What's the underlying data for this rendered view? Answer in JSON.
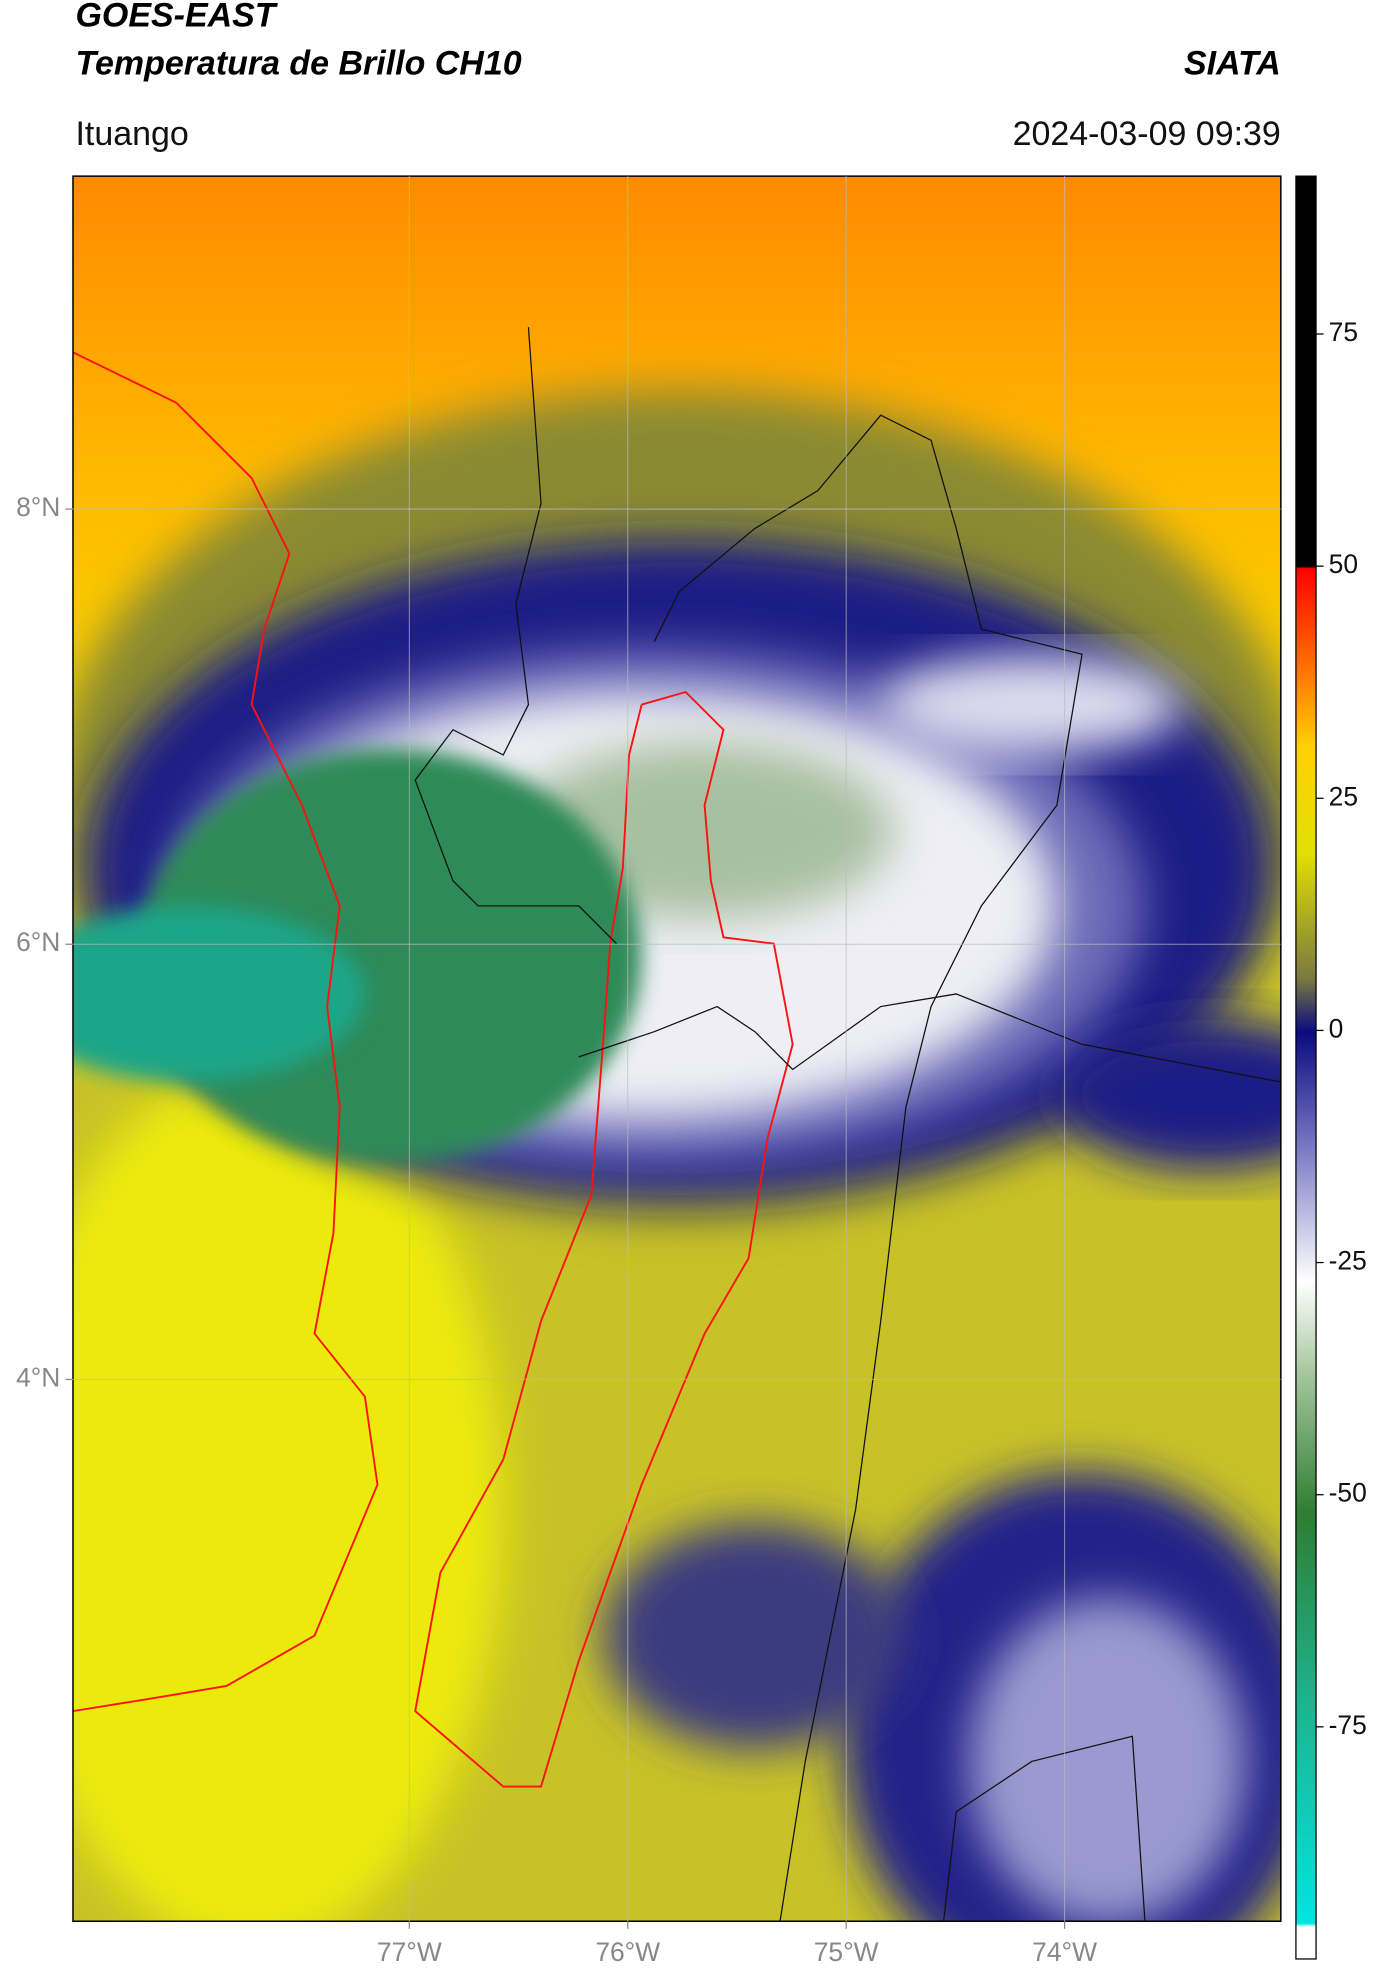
{
  "header": {
    "title": "GOES-EAST",
    "subtitle": "Temperatura de Brillo CH10",
    "org": "SIATA",
    "location": "Ituango",
    "timestamp": "2024-03-09 09:39"
  },
  "map": {
    "xlim": [
      -78.54,
      -73.01
    ],
    "ylim": [
      1.51,
      9.53
    ],
    "xticks": [
      {
        "value": -77,
        "label": "77°W"
      },
      {
        "value": -76,
        "label": "76°W"
      },
      {
        "value": -75,
        "label": "75°W"
      },
      {
        "value": -74,
        "label": "74°W"
      }
    ],
    "yticks": [
      {
        "value": 8,
        "label": "8°N"
      },
      {
        "value": 6,
        "label": "6°N"
      },
      {
        "value": 4,
        "label": "4°N"
      }
    ],
    "grid": true
  },
  "colorbar": {
    "lim": [
      -100,
      92
    ],
    "ticks": [
      75,
      50,
      25,
      0,
      -25,
      -50,
      -75
    ]
  }
}
